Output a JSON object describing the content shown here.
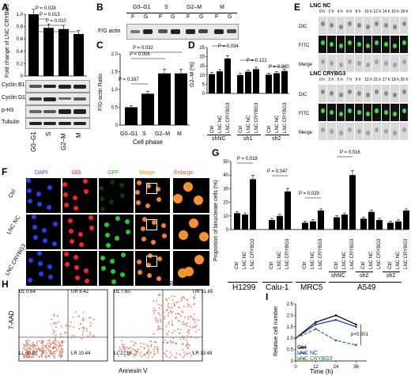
{
  "panels": {
    "A": {
      "label": "A"
    },
    "B": {
      "label": "B"
    },
    "C": {
      "label": "C"
    },
    "D": {
      "label": "D"
    },
    "E": {
      "label": "E"
    },
    "F": {
      "label": "F"
    },
    "G": {
      "label": "G"
    },
    "H": {
      "label": "H"
    },
    "I": {
      "label": "I"
    }
  },
  "panelA": {
    "ylabel": "Fold change of LNC CRYBG3",
    "pvals": [
      "P = 0.028",
      "P = 0.013",
      "P = 0.010"
    ],
    "yticks": [
      "0",
      "0.2",
      "0.4",
      "0.6",
      "0.8",
      "1.0"
    ],
    "categories": [
      "G0–G1",
      "S",
      "G2–M",
      "M"
    ],
    "blots": [
      "Cyclin B1",
      "Cyclin D1",
      "p-H3",
      "Tubulin"
    ]
  },
  "panelB": {
    "phases": [
      "G0–G1",
      "S",
      "G2–M",
      "M"
    ],
    "lanes": [
      "F",
      "G",
      "F",
      "G",
      "F",
      "G",
      "F",
      "G"
    ],
    "row": "F/G actin"
  },
  "panelC": {
    "ylabel": "F/G-actin Ratio",
    "xlabel": "Cell phase",
    "pvals": [
      "P = 0.032",
      "P = 0.006",
      "P = 0.167"
    ],
    "yticks": [
      "0",
      "0.5",
      "1.0",
      "1.5",
      "2.0"
    ],
    "categories": [
      "G0–G1",
      "S",
      "G2–M",
      "M"
    ]
  },
  "panelD": {
    "ylabel": "G2–M (%)",
    "pvals": [
      "P = 0.034",
      "P = 0.121",
      "P = 0.380"
    ],
    "yticks": [
      "0",
      "5",
      "10",
      "15",
      "20",
      "25"
    ],
    "bar_labels": [
      "Ctrl",
      "LNC NC",
      "LNC CRYBG3",
      "Ctrl",
      "LNC NC",
      "LNC CRYBG3",
      "Ctrl",
      "LNC NC",
      "LNC CRYBG3"
    ],
    "groups": [
      "shNC",
      "sh1",
      "sh2"
    ]
  },
  "panelE": {
    "title1": "LNC NC",
    "times1": [
      "0 h",
      "2 h",
      "4 h",
      "6 h",
      "8 h",
      "10 h",
      "12 h",
      "14 h",
      "16 h",
      "18 h"
    ],
    "title2": "LNC CRYBG3",
    "times2": [
      "0 h",
      "3 h",
      "5 h",
      "7 h",
      "9 h",
      "13 h",
      "15 h",
      "17 h",
      "18 h",
      "20 h"
    ],
    "rows": [
      "DIC",
      "FITC",
      "Merge"
    ]
  },
  "panelF": {
    "columns": [
      "DAPI",
      "18S",
      "GFP",
      "Merge",
      "Enlarge"
    ],
    "rows": [
      "Ctrl",
      "LNC NC",
      "LNC CRYBG3"
    ]
  },
  "panelG": {
    "ylabel": "Proportion of binucleate cells (%)",
    "yticks": [
      "0",
      "10",
      "20",
      "30",
      "40",
      "50"
    ],
    "pvals": [
      "P = 0.018",
      "P = 0.047",
      "P = 0.029",
      "P = 0.016"
    ],
    "bar_labels": [
      "Ctrl",
      "LNC NC",
      "LNC CRYBG3",
      "Ctrl",
      "LNC NC",
      "LNC CRYBG3",
      "Ctrl",
      "LNC NC",
      "LNC CRYBG3",
      "Ctrl",
      "LNC NC",
      "LNC CRYBG3",
      "Ctrl",
      "LNC NC",
      "LNC CRYBG3",
      "Ctrl",
      "LNC NC",
      "LNC CRYBG3"
    ],
    "sub_groups": [
      "shNC",
      "sh2",
      "sh2"
    ],
    "cell_lines": [
      "H1299",
      "Calu-1",
      "MRC5",
      "A549"
    ]
  },
  "panelH": {
    "ylabel": "7-AAD",
    "xlabel": "Annexin V",
    "plot1": {
      "title": "LNC NC",
      "UL": "UL\n0.64",
      "UR": "UR\n8.42",
      "LL": "LL\n80.30",
      "LR": "LR\n10.44"
    },
    "plot2": {
      "title": "LNC CRYBG3",
      "UL": "UL\n7.60",
      "UR": "UR\n51.65",
      "LL": "LL\n27.26",
      "LR": "LR\n13.49"
    }
  },
  "panelI": {
    "ylabel": "Relative cell number",
    "xlabel": "Time (h)",
    "pval": "p<0.001",
    "legend": [
      "Ctrl",
      "LNC NC",
      "LNC CRYBG3"
    ],
    "xticks": [
      "0",
      "12",
      "24",
      "36"
    ],
    "yticks": [
      "0",
      "0.5",
      "1.0",
      "1.5",
      "2.0",
      "2.5"
    ]
  },
  "chart_data": [
    {
      "type": "bar",
      "panel": "A",
      "categories": [
        "G0–G1",
        "S",
        "G2–M",
        "M"
      ],
      "values": [
        1.0,
        0.78,
        0.76,
        0.68
      ],
      "ylim": [
        0,
        1.0
      ],
      "ylabel": "Fold change of LNC CRYBG3"
    },
    {
      "type": "bar",
      "panel": "C",
      "categories": [
        "G0–G1",
        "S",
        "G2–M",
        "M"
      ],
      "values": [
        0.5,
        0.88,
        1.45,
        1.45
      ],
      "ylim": [
        0,
        2.0
      ],
      "ylabel": "F/G-actin Ratio",
      "xlabel": "Cell phase"
    },
    {
      "type": "bar",
      "panel": "D",
      "categories": [
        "Ctrl",
        "LNC NC",
        "LNC CRYBG3",
        "Ctrl",
        "LNC NC",
        "LNC CRYBG3",
        "Ctrl",
        "LNC NC",
        "LNC CRYBG3"
      ],
      "values": [
        10.5,
        12,
        19,
        10,
        11.8,
        13.2,
        10.2,
        11,
        12.2
      ],
      "ylim": [
        0,
        25
      ],
      "ylabel": "G2–M (%)"
    },
    {
      "type": "bar",
      "panel": "G",
      "categories": [
        "Ctrl",
        "LNC NC",
        "LNC CRYBG3",
        "Ctrl",
        "LNC NC",
        "LNC CRYBG3",
        "Ctrl",
        "LNC NC",
        "LNC CRYBG3",
        "Ctrl",
        "LNC NC",
        "LNC CRYBG3",
        "Ctrl",
        "LNC NC",
        "LNC CRYBG3",
        "Ctrl",
        "LNC NC",
        "LNC CRYBG3"
      ],
      "values": [
        12,
        11,
        37,
        7,
        10,
        28,
        5,
        6,
        14,
        9,
        11,
        40,
        8,
        13,
        7,
        5,
        6,
        14
      ],
      "ylim": [
        0,
        50
      ],
      "ylabel": "Proportion of binucleate cells (%)"
    },
    {
      "type": "line",
      "panel": "I",
      "x": [
        0,
        12,
        24,
        36
      ],
      "series": [
        {
          "name": "Ctrl",
          "values": [
            1.0,
            1.7,
            2.0,
            1.6
          ]
        },
        {
          "name": "LNC NC",
          "values": [
            1.0,
            1.6,
            1.8,
            1.5
          ]
        },
        {
          "name": "LNC CRYBG3",
          "values": [
            1.0,
            1.4,
            0.9,
            0.7
          ]
        }
      ],
      "xlabel": "Time (h)",
      "ylabel": "Relative cell number",
      "ylim": [
        0,
        2.5
      ]
    }
  ]
}
